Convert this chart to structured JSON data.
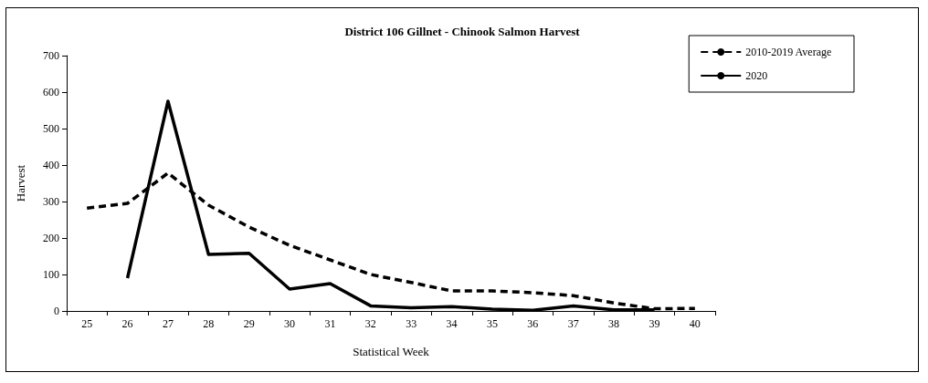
{
  "chart_data": {
    "type": "line",
    "title": "District 106 Gillnet - Chinook Salmon Harvest",
    "xlabel": "Statistical Week",
    "ylabel": "Harvest",
    "categories": [
      "25",
      "26",
      "27",
      "28",
      "29",
      "30",
      "31",
      "32",
      "33",
      "34",
      "35",
      "36",
      "37",
      "38",
      "39",
      "40"
    ],
    "series": [
      {
        "name": "2010-2019 Average",
        "color": "#000000",
        "line_style": "dashed",
        "values": [
          282,
          295,
          378,
          290,
          230,
          180,
          140,
          100,
          78,
          55,
          55,
          50,
          42,
          22,
          6,
          7
        ]
      },
      {
        "name": "2020",
        "color": "#000000",
        "line_style": "solid",
        "values": [
          null,
          90,
          575,
          155,
          158,
          60,
          75,
          14,
          9,
          12,
          5,
          2,
          14,
          3,
          3,
          null
        ]
      }
    ],
    "ylim": [
      0,
      700
    ],
    "yticks": [
      0,
      100,
      200,
      300,
      400,
      500,
      600,
      700
    ],
    "grid": false,
    "legend": "top right",
    "marker": "none"
  }
}
